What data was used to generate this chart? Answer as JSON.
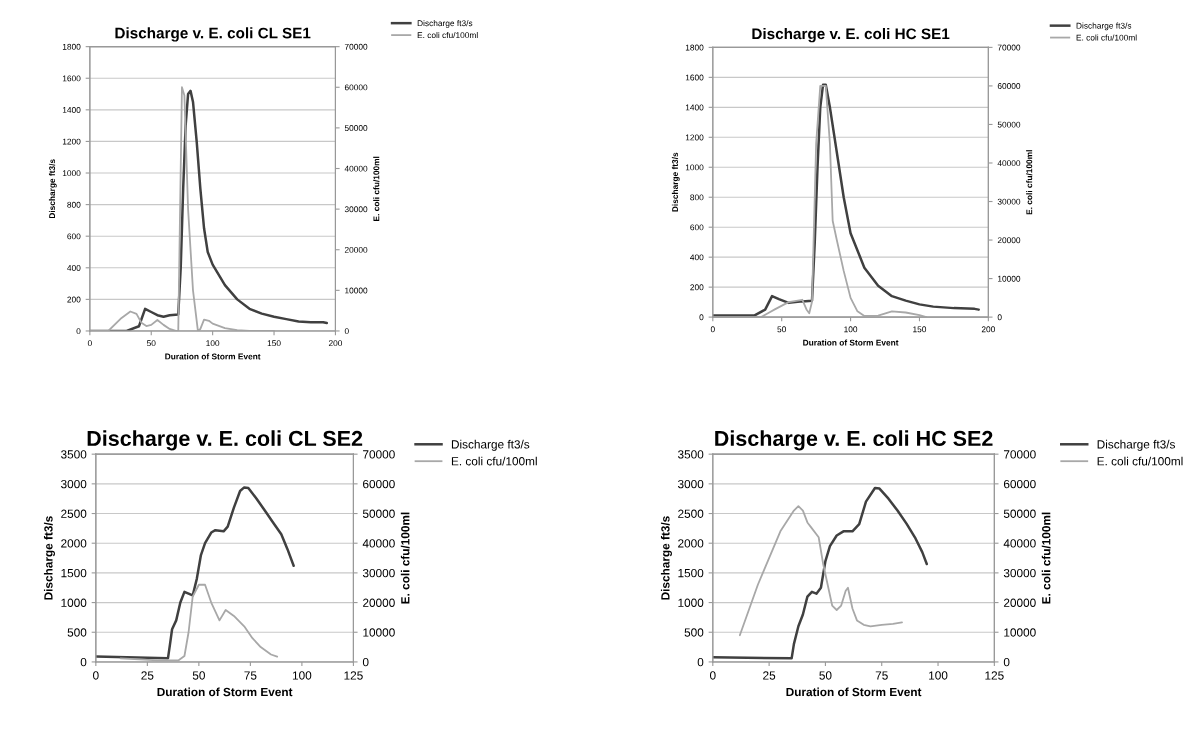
{
  "chart_data": [
    {
      "type": "line",
      "title": "Discharge v. E. coli CL SE1",
      "xlabel": "Duration of Storm Event",
      "ylabel": "Discharge ft3/s",
      "y2label": "E. coli cfu/100ml",
      "xlim": [
        0,
        200
      ],
      "xticks": [
        0,
        50,
        100,
        150,
        200
      ],
      "ylim": [
        0,
        1800
      ],
      "yticks": [
        0,
        200,
        400,
        600,
        800,
        1000,
        1200,
        1400,
        1600,
        1800
      ],
      "y2lim": [
        0,
        70000
      ],
      "y2ticks": [
        0,
        10000,
        20000,
        30000,
        40000,
        50000,
        60000,
        70000
      ],
      "grid": "y",
      "legend": "top right",
      "series": [
        {
          "name": "Discharge ft3/s",
          "color": "#404040",
          "x": [
            0,
            30,
            40,
            45,
            50,
            55,
            60,
            65,
            72,
            74,
            76,
            78,
            80,
            82,
            84,
            87,
            90,
            93,
            96,
            100,
            110,
            120,
            130,
            140,
            150,
            160,
            170,
            180,
            190,
            193
          ],
          "values": [
            0,
            0,
            30,
            140,
            120,
            100,
            90,
            100,
            105,
            400,
            900,
            1300,
            1500,
            1520,
            1450,
            1200,
            900,
            650,
            500,
            420,
            290,
            200,
            140,
            110,
            90,
            75,
            60,
            55,
            55,
            50
          ]
        },
        {
          "name": "E. coli cfu/100ml",
          "color": "#a8a8a8",
          "axis": "y2",
          "x": [
            0,
            15,
            25,
            33,
            38,
            42,
            46,
            50,
            55,
            60,
            65,
            70,
            72,
            75,
            77,
            80,
            84,
            88,
            90,
            93,
            97,
            100,
            110,
            120,
            130,
            150
          ],
          "values": [
            0,
            0,
            3000,
            4800,
            4200,
            2000,
            1200,
            1500,
            2700,
            1500,
            500,
            0,
            0,
            60000,
            58000,
            30000,
            10000,
            0,
            500,
            2800,
            2500,
            1800,
            700,
            200,
            0,
            0
          ]
        }
      ]
    },
    {
      "type": "line",
      "title": "Discharge v. E. coli HC SE1",
      "xlabel": "Duration of Storm Event",
      "ylabel": "Discharge ft3/s",
      "y2label": "E. coli cfu/100ml",
      "xlim": [
        0,
        200
      ],
      "xticks": [
        0,
        50,
        100,
        150,
        200
      ],
      "ylim": [
        0,
        1800
      ],
      "yticks": [
        0,
        200,
        400,
        600,
        800,
        1000,
        1200,
        1400,
        1600,
        1800
      ],
      "y2lim": [
        0,
        70000
      ],
      "y2ticks": [
        0,
        10000,
        20000,
        30000,
        40000,
        50000,
        60000,
        70000
      ],
      "grid": "y",
      "legend": "top right",
      "series": [
        {
          "name": "Discharge ft3/s",
          "color": "#404040",
          "x": [
            0,
            30,
            38,
            43,
            48,
            55,
            65,
            72,
            74,
            76,
            78,
            80,
            82,
            85,
            90,
            95,
            100,
            110,
            120,
            130,
            140,
            150,
            160,
            175,
            190,
            193
          ],
          "values": [
            10,
            10,
            50,
            140,
            120,
            95,
            105,
            110,
            500,
            1000,
            1400,
            1550,
            1550,
            1400,
            1100,
            800,
            560,
            330,
            210,
            140,
            110,
            85,
            70,
            60,
            55,
            50
          ]
        },
        {
          "name": "E. coli cfu/100ml",
          "color": "#a8a8a8",
          "axis": "y2",
          "x": [
            0,
            35,
            40,
            45,
            55,
            65,
            68,
            70,
            72,
            75,
            78,
            82,
            85,
            87,
            90,
            95,
            100,
            105,
            110,
            120,
            130,
            140,
            150,
            155
          ],
          "values": [
            0,
            0,
            1000,
            2000,
            3900,
            4500,
            2000,
            1000,
            4000,
            45000,
            60000,
            60000,
            45000,
            25000,
            20000,
            12000,
            5000,
            1500,
            300,
            400,
            1500,
            1200,
            500,
            0
          ]
        }
      ]
    },
    {
      "type": "line",
      "title": "Discharge v. E. coli CL SE2",
      "xlabel": "Duration of Storm Event",
      "ylabel": "Discharge ft3/s",
      "y2label": "E. coli cfu/100ml",
      "xlim": [
        0,
        125
      ],
      "xticks": [
        0,
        25,
        50,
        75,
        100,
        125
      ],
      "ylim": [
        0,
        3500
      ],
      "yticks": [
        0,
        500,
        1000,
        1500,
        2000,
        2500,
        3000,
        3500
      ],
      "y2lim": [
        0,
        70000
      ],
      "y2ticks": [
        0,
        10000,
        20000,
        30000,
        40000,
        50000,
        60000,
        70000
      ],
      "grid": "y",
      "legend": "top right",
      "series": [
        {
          "name": "Discharge ft3/s",
          "color": "#404040",
          "x": [
            0,
            35,
            36,
            37,
            39,
            41,
            43,
            45,
            47,
            49,
            51,
            53,
            56,
            58,
            62,
            64,
            67,
            70,
            72,
            74,
            78,
            82,
            86,
            90,
            93,
            96
          ],
          "values": [
            90,
            60,
            300,
            550,
            700,
            1000,
            1180,
            1150,
            1120,
            1400,
            1800,
            2000,
            2180,
            2220,
            2200,
            2280,
            2600,
            2880,
            2940,
            2930,
            2750,
            2550,
            2350,
            2150,
            1900,
            1620
          ]
        },
        {
          "name": "E. coli cfu/100ml",
          "color": "#a8a8a8",
          "axis": "y2",
          "x": [
            12,
            30,
            40,
            43,
            45,
            47,
            50,
            53,
            56,
            60,
            63,
            67,
            72,
            76,
            80,
            85,
            88
          ],
          "values": [
            1200,
            500,
            500,
            2000,
            10000,
            22000,
            26000,
            26000,
            20000,
            14000,
            17500,
            15500,
            12000,
            8000,
            5000,
            2500,
            1800
          ]
        }
      ]
    },
    {
      "type": "line",
      "title": "Discharge v. E. coli HC SE2",
      "xlabel": "Duration of Storm Event",
      "ylabel": "Discharge ft3/s",
      "y2label": "E. coli cfu/100ml",
      "xlim": [
        0,
        125
      ],
      "xticks": [
        0,
        25,
        50,
        75,
        100,
        125
      ],
      "ylim": [
        0,
        3500
      ],
      "yticks": [
        0,
        500,
        1000,
        1500,
        2000,
        2500,
        3000,
        3500
      ],
      "y2lim": [
        0,
        70000
      ],
      "y2ticks": [
        0,
        10000,
        20000,
        30000,
        40000,
        50000,
        60000,
        70000
      ],
      "grid": "y",
      "legend": "top right",
      "series": [
        {
          "name": "Discharge ft3/s",
          "color": "#404040",
          "x": [
            0,
            35,
            36,
            38,
            40,
            42,
            44,
            46,
            48,
            50,
            52,
            55,
            58,
            62,
            65,
            68,
            72,
            74,
            78,
            82,
            86,
            90,
            93,
            95
          ],
          "values": [
            80,
            60,
            300,
            600,
            800,
            1100,
            1180,
            1150,
            1250,
            1700,
            1950,
            2130,
            2200,
            2200,
            2320,
            2700,
            2930,
            2920,
            2750,
            2550,
            2330,
            2080,
            1850,
            1650
          ]
        },
        {
          "name": "E. coli cfu/100ml",
          "color": "#a8a8a8",
          "axis": "y2",
          "x": [
            12,
            20,
            30,
            36,
            38,
            40,
            42,
            44,
            47,
            49,
            51,
            53,
            55,
            57,
            59,
            60,
            62,
            64,
            67,
            70,
            75,
            80,
            84
          ],
          "values": [
            9000,
            26000,
            44000,
            51000,
            52500,
            51000,
            47000,
            45000,
            42000,
            33000,
            26000,
            19000,
            17500,
            19000,
            24000,
            25000,
            18000,
            14000,
            12500,
            12000,
            12500,
            12800,
            13300
          ]
        }
      ]
    }
  ]
}
